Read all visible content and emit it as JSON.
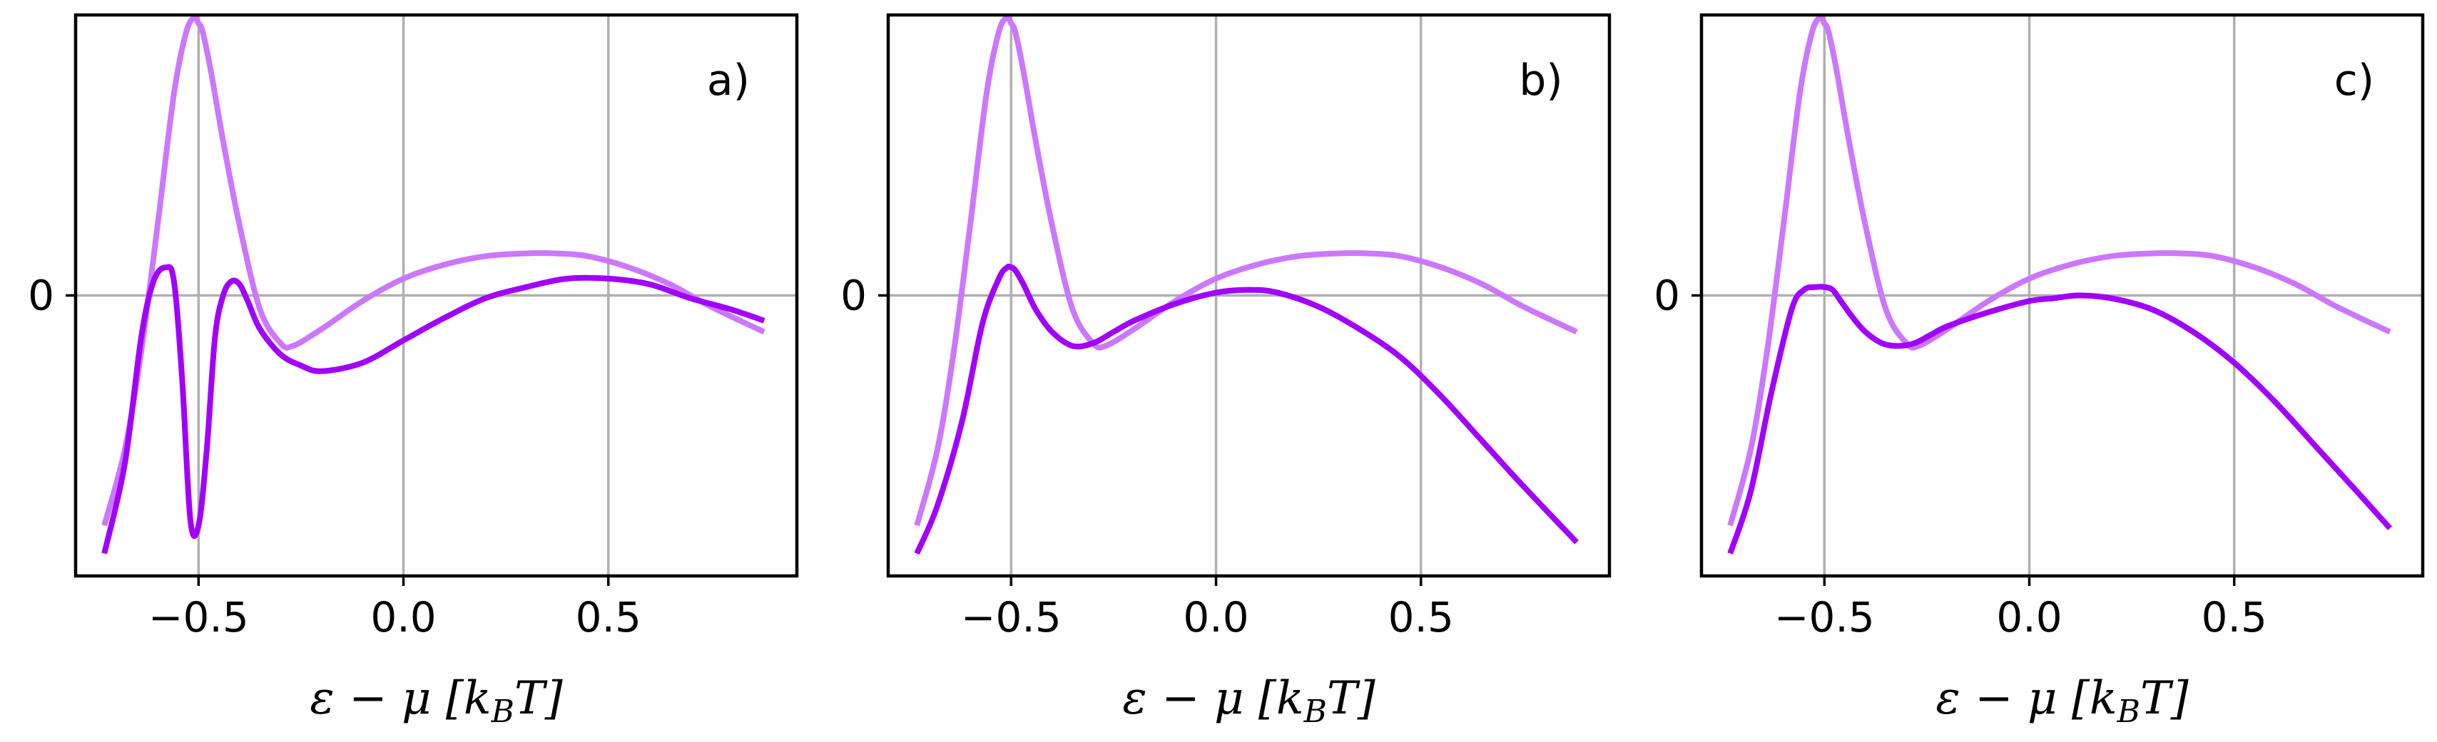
{
  "chart_data": [
    {
      "type": "line",
      "label": "a)",
      "xlabel": "ε − μ [k_BT]",
      "xlabel_parts": {
        "main": "ε − μ [",
        "k": "k",
        "sub": "B",
        "tail": "T]"
      },
      "xlim": [
        -0.8,
        0.96
      ],
      "ylim": [
        -1.0,
        1.0
      ],
      "xticks": [
        -0.5,
        0.0,
        0.5
      ],
      "xtick_labels": [
        "−0.5",
        "0.0",
        "0.5"
      ],
      "yticks": [
        0
      ],
      "ytick_labels": [
        "0"
      ],
      "grid": true,
      "series": [
        {
          "color": "#cc77ff",
          "x": [
            -0.73,
            -0.68,
            -0.64,
            -0.6,
            -0.56,
            -0.53,
            -0.51,
            -0.5,
            -0.49,
            -0.47,
            -0.44,
            -0.4,
            -0.35,
            -0.3,
            -0.27,
            -0.2,
            -0.1,
            0.0,
            0.1,
            0.2,
            0.3,
            0.37,
            0.45,
            0.55,
            0.65,
            0.75,
            0.88
          ],
          "y": [
            -0.82,
            -0.55,
            -0.2,
            0.25,
            0.72,
            0.94,
            0.99,
            0.97,
            0.94,
            0.8,
            0.55,
            0.25,
            -0.05,
            -0.17,
            -0.18,
            -0.12,
            -0.02,
            0.06,
            0.11,
            0.14,
            0.15,
            0.15,
            0.14,
            0.1,
            0.04,
            -0.04,
            -0.13
          ]
        },
        {
          "color": "#a100ff",
          "x": [
            -0.73,
            -0.68,
            -0.64,
            -0.61,
            -0.58,
            -0.56,
            -0.54,
            -0.52,
            -0.5,
            -0.48,
            -0.46,
            -0.44,
            -0.42,
            -0.4,
            -0.38,
            -0.35,
            -0.3,
            -0.25,
            -0.2,
            -0.1,
            0.0,
            0.1,
            0.2,
            0.3,
            0.4,
            0.5,
            0.6,
            0.7,
            0.8,
            0.88
          ],
          "y": [
            -0.92,
            -0.6,
            -0.15,
            0.05,
            0.1,
            0.05,
            -0.3,
            -0.8,
            -0.82,
            -0.55,
            -0.15,
            0.0,
            0.05,
            0.04,
            -0.02,
            -0.12,
            -0.21,
            -0.25,
            -0.27,
            -0.24,
            -0.16,
            -0.08,
            -0.01,
            0.03,
            0.06,
            0.06,
            0.04,
            -0.01,
            -0.05,
            -0.09
          ]
        }
      ]
    },
    {
      "type": "line",
      "label": "b)",
      "xlabel": "ε − μ [k_BT]",
      "xlabel_parts": {
        "main": "ε − μ [",
        "k": "k",
        "sub": "B",
        "tail": "T]"
      },
      "xlim": [
        -0.8,
        0.96
      ],
      "ylim": [
        -1.0,
        1.0
      ],
      "xticks": [
        -0.5,
        0.0,
        0.5
      ],
      "xtick_labels": [
        "−0.5",
        "0.0",
        "0.5"
      ],
      "yticks": [
        0
      ],
      "ytick_labels": [
        "0"
      ],
      "grid": true,
      "series": [
        {
          "color": "#cc77ff",
          "x": [
            -0.73,
            -0.68,
            -0.64,
            -0.6,
            -0.56,
            -0.53,
            -0.51,
            -0.5,
            -0.49,
            -0.47,
            -0.44,
            -0.4,
            -0.35,
            -0.3,
            -0.27,
            -0.2,
            -0.1,
            0.0,
            0.1,
            0.2,
            0.3,
            0.37,
            0.45,
            0.55,
            0.65,
            0.75,
            0.88
          ],
          "y": [
            -0.82,
            -0.55,
            -0.2,
            0.25,
            0.72,
            0.94,
            0.99,
            0.97,
            0.94,
            0.8,
            0.55,
            0.25,
            -0.05,
            -0.17,
            -0.18,
            -0.12,
            -0.02,
            0.06,
            0.11,
            0.14,
            0.15,
            0.15,
            0.14,
            0.1,
            0.04,
            -0.04,
            -0.13
          ]
        },
        {
          "color": "#a100ff",
          "x": [
            -0.73,
            -0.68,
            -0.62,
            -0.57,
            -0.53,
            -0.51,
            -0.5,
            -0.49,
            -0.47,
            -0.44,
            -0.4,
            -0.35,
            -0.3,
            -0.25,
            -0.2,
            -0.1,
            0.0,
            0.08,
            0.15,
            0.25,
            0.35,
            0.45,
            0.55,
            0.65,
            0.75,
            0.88
          ],
          "y": [
            -0.92,
            -0.75,
            -0.45,
            -0.1,
            0.06,
            0.1,
            0.1,
            0.09,
            0.04,
            -0.05,
            -0.13,
            -0.18,
            -0.17,
            -0.13,
            -0.09,
            -0.03,
            0.01,
            0.02,
            0.01,
            -0.04,
            -0.12,
            -0.22,
            -0.36,
            -0.52,
            -0.68,
            -0.88
          ]
        }
      ]
    },
    {
      "type": "line",
      "label": "c)",
      "xlabel": "ε − μ [k_BT]",
      "xlabel_parts": {
        "main": "ε − μ [",
        "k": "k",
        "sub": "B",
        "tail": "T]"
      },
      "xlim": [
        -0.8,
        0.96
      ],
      "ylim": [
        -1.0,
        1.0
      ],
      "xticks": [
        -0.5,
        0.0,
        0.5
      ],
      "xtick_labels": [
        "−0.5",
        "0.0",
        "0.5"
      ],
      "yticks": [
        0
      ],
      "ytick_labels": [
        "0"
      ],
      "grid": true,
      "series": [
        {
          "color": "#cc77ff",
          "x": [
            -0.73,
            -0.68,
            -0.64,
            -0.6,
            -0.56,
            -0.53,
            -0.51,
            -0.5,
            -0.49,
            -0.47,
            -0.44,
            -0.4,
            -0.35,
            -0.3,
            -0.27,
            -0.2,
            -0.1,
            0.0,
            0.1,
            0.2,
            0.3,
            0.37,
            0.45,
            0.55,
            0.65,
            0.75,
            0.88
          ],
          "y": [
            -0.82,
            -0.55,
            -0.2,
            0.25,
            0.72,
            0.94,
            0.99,
            0.97,
            0.94,
            0.8,
            0.55,
            0.25,
            -0.05,
            -0.17,
            -0.18,
            -0.12,
            -0.02,
            0.06,
            0.11,
            0.14,
            0.15,
            0.15,
            0.14,
            0.1,
            0.04,
            -0.04,
            -0.13
          ]
        },
        {
          "color": "#a100ff",
          "x": [
            -0.73,
            -0.68,
            -0.63,
            -0.58,
            -0.55,
            -0.52,
            -0.5,
            -0.48,
            -0.46,
            -0.43,
            -0.4,
            -0.36,
            -0.32,
            -0.28,
            -0.24,
            -0.2,
            -0.1,
            0.0,
            0.06,
            0.12,
            0.2,
            0.3,
            0.4,
            0.5,
            0.6,
            0.7,
            0.8,
            0.88
          ],
          "y": [
            -0.92,
            -0.7,
            -0.35,
            -0.05,
            0.02,
            0.03,
            0.03,
            0.02,
            -0.02,
            -0.08,
            -0.13,
            -0.17,
            -0.18,
            -0.17,
            -0.14,
            -0.11,
            -0.06,
            -0.02,
            -0.01,
            0.0,
            -0.01,
            -0.05,
            -0.13,
            -0.24,
            -0.38,
            -0.54,
            -0.7,
            -0.83
          ]
        }
      ]
    }
  ]
}
